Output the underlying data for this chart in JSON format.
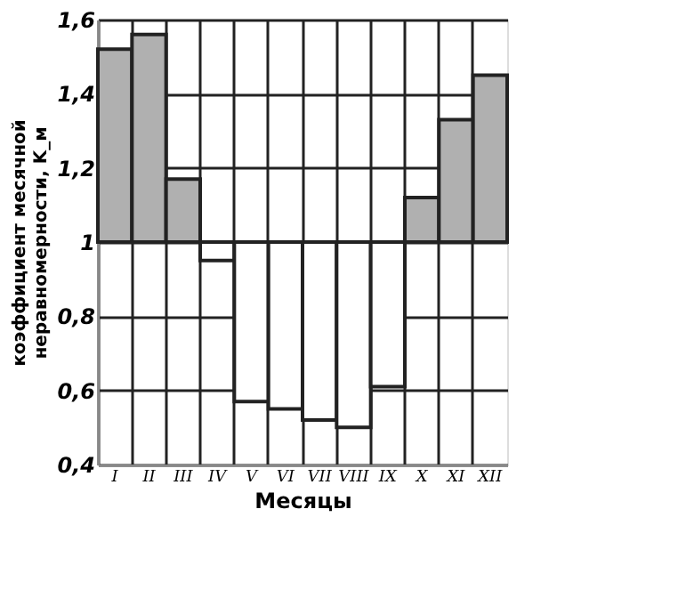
{
  "chart_data": {
    "type": "bar",
    "xlabel": "Месяцы",
    "ylabel": "коэффициент месячной неравномерности, K_м",
    "categories": [
      "I",
      "II",
      "III",
      "IV",
      "V",
      "VI",
      "VII",
      "VIII",
      "IX",
      "X",
      "XI",
      "XII"
    ],
    "base": [
      1,
      1,
      1,
      1,
      1,
      1,
      1,
      1,
      1,
      1,
      1,
      1
    ],
    "values": [
      0.52,
      0.56,
      0.17,
      -0.05,
      -0.43,
      -0.45,
      -0.48,
      -0.5,
      -0.39,
      0.12,
      0.33,
      0.45
    ],
    "colors": [
      "#b0b0b0",
      "#b0b0b0",
      "#b0b0b0",
      "#ffffff",
      "#ffffff",
      "#ffffff",
      "#ffffff",
      "#ffffff",
      "#ffffff",
      "#b0b0b0",
      "#b0b0b0",
      "#b0b0b0"
    ],
    "ylim": [
      0.4,
      1.6
    ],
    "yticks": [
      {
        "value": 0.4,
        "label": "0,4"
      },
      {
        "value": 0.6,
        "label": "0,6"
      },
      {
        "value": 0.8,
        "label": "0,8"
      },
      1,
      {
        "value": 1.2,
        "label": "1,2"
      },
      {
        "value": 1.4,
        "label": "1,4"
      },
      {
        "value": 1.6,
        "label": "1,6"
      }
    ],
    "grid": true
  }
}
